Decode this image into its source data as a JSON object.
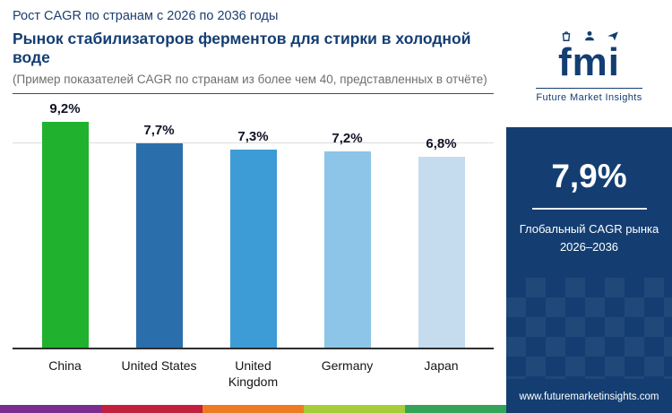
{
  "header": {
    "kicker": "Рост CAGR по странам с 2026 по 2036 годы",
    "title": "Рынок стабилизаторов ферментов для стирки в холодной воде",
    "subtitle": "(Пример показателей CAGR по странам из более чем 40, представленных в отчёте)"
  },
  "chart_data": {
    "type": "bar",
    "title": "Рынок стабилизаторов ферментов для стирки в холодной воде",
    "categories": [
      "China",
      "United States",
      "United Kingdom",
      "Germany",
      "Japan"
    ],
    "values": [
      9.2,
      7.7,
      7.3,
      7.2,
      6.8
    ],
    "value_labels": [
      "9,2%",
      "7,7%",
      "7,3%",
      "7,2%",
      "6,8%"
    ],
    "bar_colors": [
      "#20b22e",
      "#2a6fab",
      "#3d9bd5",
      "#8cc5e8",
      "#c4dcee"
    ],
    "xlabel": "",
    "ylabel": "",
    "ylim": [
      0,
      10
    ],
    "grid": "single faint top gridline",
    "legend": "none"
  },
  "sidebar": {
    "bg_color": "#143e72",
    "logo_text": "fmi",
    "logo_subtext": "Future Market Insights",
    "highlight_value": "7,9%",
    "labels": {
      "line1": "Глобальный CAGR рынка",
      "line2": "2026–2036"
    },
    "website": "www.futuremarketinsights.com"
  },
  "footer": {
    "stripe_colors": [
      "#7a2d8d",
      "#c21f3f",
      "#ee7b22",
      "#a5cd39",
      "#33a457"
    ]
  }
}
